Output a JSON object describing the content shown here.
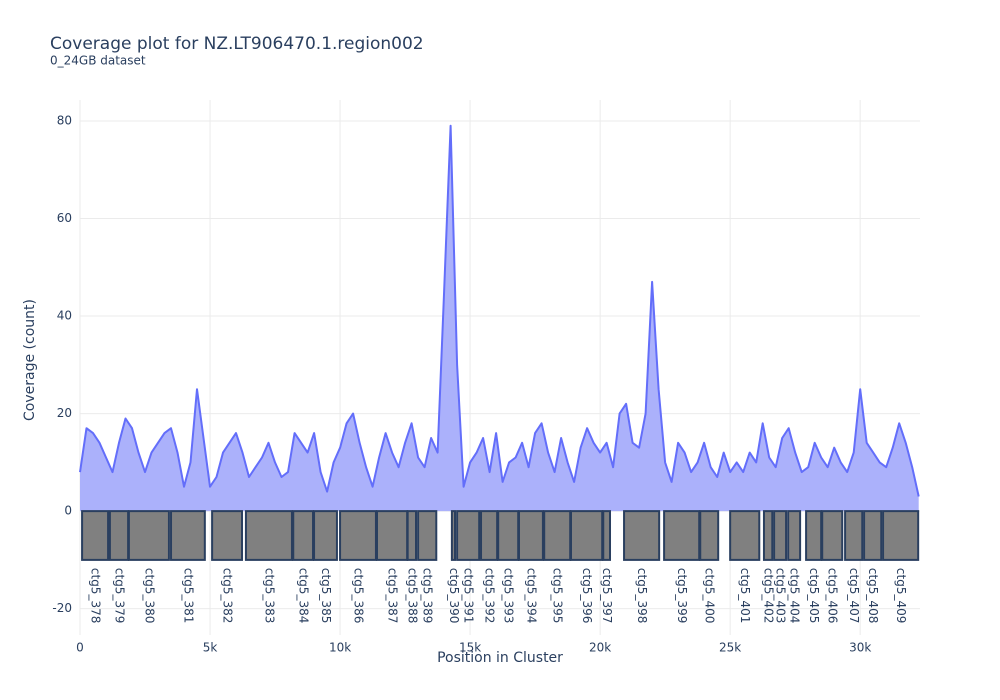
{
  "chart_data": {
    "type": "coverage",
    "title": "Coverage plot for NZ.LT906470.1.region002",
    "subtitle": "0_24GB dataset",
    "x_label": "Position in Cluster",
    "y_label": "Coverage (count)",
    "color": "#636efa",
    "fill_color": "#abb1fb",
    "gene_color": "#808080",
    "gene_edge_color": "#2a3f5f",
    "grid": true,
    "xlim": [
      0,
      32300
    ],
    "ylim": [
      -25.4,
      84.3
    ],
    "xticks": [
      0,
      {
        "value": 5000,
        "label": "5k"
      },
      {
        "value": 10000,
        "label": "10k"
      },
      {
        "value": 15000,
        "label": "15k"
      },
      {
        "value": 20000,
        "label": "20k"
      },
      {
        "value": 25000,
        "label": "25k"
      },
      {
        "value": 30000,
        "label": "30k"
      }
    ],
    "yticks": [
      -20,
      0,
      20,
      40,
      60,
      80
    ],
    "x": [
      0,
      250,
      500,
      750,
      1000,
      1250,
      1500,
      1750,
      2000,
      2250,
      2500,
      2750,
      3000,
      3250,
      3500,
      3750,
      4000,
      4250,
      4500,
      4750,
      5000,
      5250,
      5500,
      5750,
      6000,
      6250,
      6500,
      6750,
      7000,
      7250,
      7500,
      7750,
      8000,
      8250,
      8500,
      8750,
      9000,
      9250,
      9500,
      9750,
      10000,
      10250,
      10500,
      10750,
      11000,
      11250,
      11500,
      11750,
      12000,
      12250,
      12500,
      12750,
      13000,
      13250,
      13500,
      13750,
      14000,
      14250,
      14500,
      14750,
      15000,
      15250,
      15500,
      15750,
      16000,
      16250,
      16500,
      16750,
      17000,
      17250,
      17500,
      17750,
      18000,
      18250,
      18500,
      18750,
      19000,
      19250,
      19500,
      19750,
      20000,
      20250,
      20500,
      20750,
      21000,
      21250,
      21500,
      21750,
      22000,
      22250,
      22500,
      22750,
      23000,
      23250,
      23500,
      23750,
      24000,
      24250,
      24500,
      24750,
      25000,
      25250,
      25500,
      25750,
      26000,
      26250,
      26500,
      26750,
      27000,
      27250,
      27500,
      27750,
      28000,
      28250,
      28500,
      28750,
      29000,
      29250,
      29500,
      29750,
      30000,
      30250,
      30500,
      30750,
      31000,
      31250,
      31500,
      31750,
      32000,
      32250
    ],
    "values": [
      8,
      17,
      16,
      14,
      11,
      8,
      14,
      19,
      17,
      12,
      8,
      12,
      14,
      16,
      17,
      12,
      5,
      10,
      25,
      15,
      5,
      7,
      12,
      14,
      16,
      12,
      7,
      9,
      11,
      14,
      10,
      7,
      8,
      16,
      14,
      12,
      16,
      8,
      4,
      10,
      13,
      18,
      20,
      14,
      9,
      5,
      11,
      16,
      12,
      9,
      14,
      18,
      11,
      9,
      15,
      12,
      45,
      79,
      30,
      5,
      10,
      12,
      15,
      8,
      16,
      6,
      10,
      11,
      14,
      9,
      16,
      18,
      12,
      8,
      15,
      10,
      6,
      13,
      17,
      14,
      12,
      14,
      9,
      20,
      22,
      14,
      13,
      20,
      47,
      25,
      10,
      6,
      14,
      12,
      8,
      10,
      14,
      9,
      7,
      12,
      8,
      10,
      8,
      12,
      10,
      18,
      11,
      9,
      15,
      17,
      12,
      8,
      9,
      14,
      11,
      9,
      13,
      10,
      8,
      12,
      25,
      14,
      12,
      10,
      9,
      13,
      18,
      14,
      9,
      3
    ],
    "gene_y": [
      -10,
      0
    ],
    "genes": [
      {
        "name": "ctg5_378",
        "start": 80,
        "end": 1080
      },
      {
        "name": "ctg5_379",
        "start": 1150,
        "end": 1850
      },
      {
        "name": "ctg5_380",
        "start": 1880,
        "end": 3420
      },
      {
        "name": "ctg5_381",
        "start": 3500,
        "end": 4800
      },
      {
        "name": "ctg5_382",
        "start": 5080,
        "end": 6230
      },
      {
        "name": "ctg5_383",
        "start": 6380,
        "end": 8150
      },
      {
        "name": "ctg5_384",
        "start": 8200,
        "end": 8960
      },
      {
        "name": "ctg5_385",
        "start": 9000,
        "end": 9880
      },
      {
        "name": "ctg5_386",
        "start": 10000,
        "end": 11380
      },
      {
        "name": "ctg5_387",
        "start": 11420,
        "end": 12580
      },
      {
        "name": "ctg5_388",
        "start": 12600,
        "end": 12920
      },
      {
        "name": "ctg5_389",
        "start": 13000,
        "end": 13700
      },
      {
        "name": "ctg5_390",
        "start": 14300,
        "end": 14420
      },
      {
        "name": "ctg5_391",
        "start": 14500,
        "end": 15350
      },
      {
        "name": "ctg5_392",
        "start": 15420,
        "end": 16040
      },
      {
        "name": "ctg5_393",
        "start": 16080,
        "end": 16850
      },
      {
        "name": "ctg5_394",
        "start": 16880,
        "end": 17800
      },
      {
        "name": "ctg5_395",
        "start": 17850,
        "end": 18850
      },
      {
        "name": "ctg5_396",
        "start": 18880,
        "end": 20080
      },
      {
        "name": "ctg5_397",
        "start": 20120,
        "end": 20380
      },
      {
        "name": "ctg5_398",
        "start": 20920,
        "end": 22270
      },
      {
        "name": "ctg5_399",
        "start": 22460,
        "end": 23810
      },
      {
        "name": "ctg5_400",
        "start": 23850,
        "end": 24540
      },
      {
        "name": "ctg5_401",
        "start": 25000,
        "end": 26120
      },
      {
        "name": "ctg5_402",
        "start": 26300,
        "end": 26620
      },
      {
        "name": "ctg5_403",
        "start": 26690,
        "end": 27150
      },
      {
        "name": "ctg5_404",
        "start": 27230,
        "end": 27690
      },
      {
        "name": "ctg5_405",
        "start": 27920,
        "end": 28500
      },
      {
        "name": "ctg5_406",
        "start": 28540,
        "end": 29310
      },
      {
        "name": "ctg5_407",
        "start": 29420,
        "end": 30080
      },
      {
        "name": "ctg5_408",
        "start": 30150,
        "end": 30810
      },
      {
        "name": "ctg5_409",
        "start": 30880,
        "end": 32230
      }
    ]
  }
}
